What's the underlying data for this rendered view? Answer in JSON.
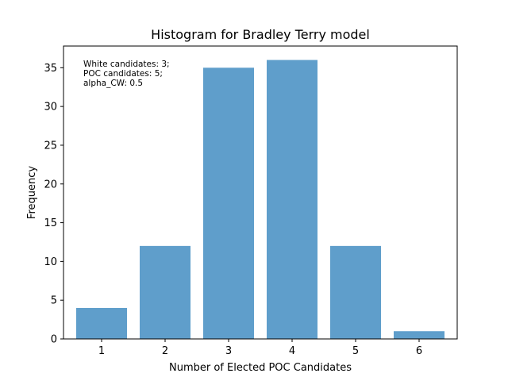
{
  "chart_data": {
    "type": "bar",
    "title": "Histogram for Bradley Terry model",
    "xlabel": "Number of Elected POC Candidates",
    "ylabel": "Frequency",
    "categories": [
      "1",
      "2",
      "3",
      "4",
      "5",
      "6"
    ],
    "values": [
      4,
      12,
      35,
      36,
      12,
      1
    ],
    "xlim": [
      0.4,
      6.6
    ],
    "ylim": [
      0,
      37.8
    ],
    "yticks": [
      0,
      5,
      10,
      15,
      20,
      25,
      30,
      35
    ],
    "bar_color": "#5f9ecb",
    "annotation": [
      "White candidates: 3;",
      "POC candidates: 5;",
      "alpha_CW: 0.5"
    ],
    "annotation_position": "top-left",
    "grid": false,
    "legend": "none"
  }
}
